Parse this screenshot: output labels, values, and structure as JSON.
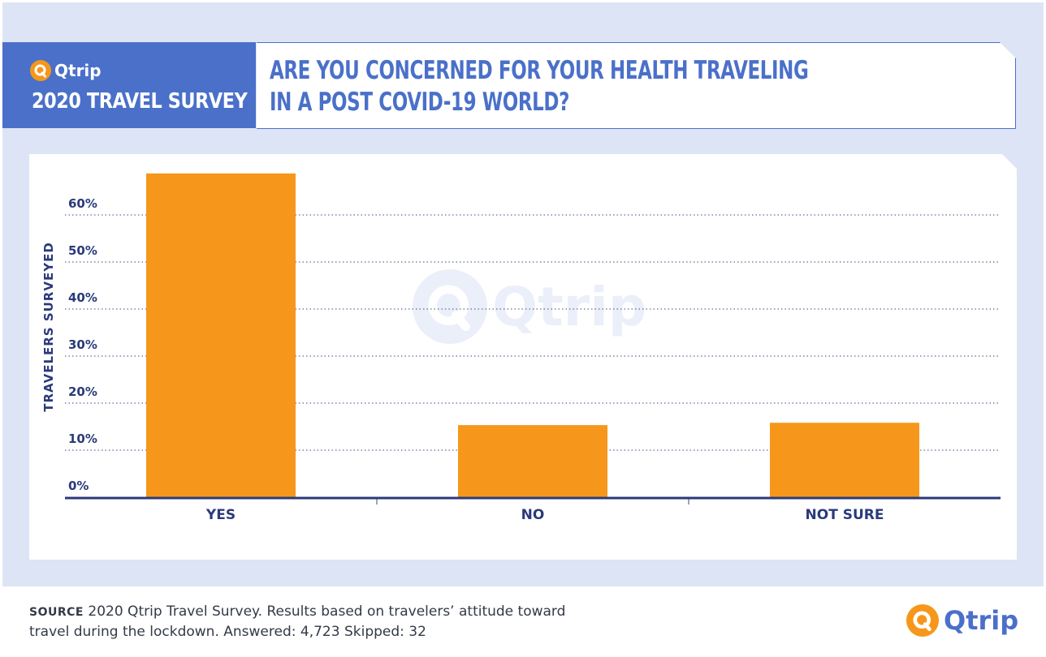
{
  "brand": {
    "name": "Qtrip",
    "survey_title": "2020 TRAVEL SURVEY",
    "logo_icon": "qtrip-logo-icon",
    "accent": "#4a70c9",
    "orange": "#f6971c"
  },
  "title": {
    "line1": "ARE YOU CONCERNED FOR YOUR HEALTH TRAVELING",
    "line2": "IN A POST COVID-19 WORLD?"
  },
  "chart_data": {
    "type": "bar",
    "categories": [
      "YES",
      "NO",
      "NOT SURE"
    ],
    "values": [
      69,
      15.5,
      16
    ],
    "ylabel": "TRAVELERS SURVEYED",
    "yticks": [
      "0%",
      "10%",
      "20%",
      "30%",
      "40%",
      "50%",
      "60%"
    ],
    "ylim": [
      0,
      70
    ],
    "grid": true,
    "bar_color": "#f6971c"
  },
  "watermark": {
    "text": "Qtrip"
  },
  "footer": {
    "source_label": "SOURCE",
    "source_line1": "2020 Qtrip Travel Survey. Results based on travelers’ attitude toward",
    "source_line2": "travel during the lockdown. Answered: 4,723  Skipped: 32",
    "logo_text": "Qtrip"
  }
}
